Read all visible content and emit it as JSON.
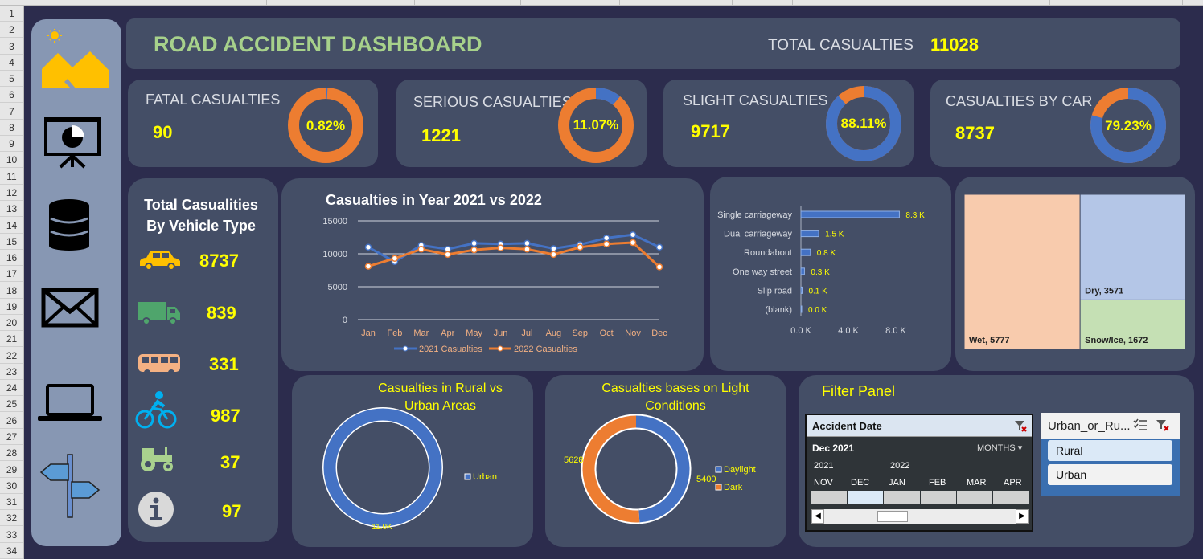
{
  "dashboard": {
    "title": "ROAD ACCIDENT DASHBOARD",
    "total_label": "TOTAL CASUALTIES",
    "total_value": "11028"
  },
  "row_numbers": [
    "1",
    "2",
    "3",
    "4",
    "5",
    "6",
    "7",
    "8",
    "9",
    "10",
    "11",
    "12",
    "13",
    "14",
    "15",
    "16",
    "17",
    "18",
    "19",
    "20",
    "21",
    "22",
    "23",
    "24",
    "25",
    "26",
    "27",
    "28",
    "29",
    "30",
    "31",
    "32",
    "33",
    "34"
  ],
  "sidebar": {
    "icons": [
      "dashboard-logo-icon",
      "presentation-chart-icon",
      "database-icon",
      "mail-icon",
      "laptop-icon",
      "signpost-icon"
    ]
  },
  "kpis": [
    {
      "label": "FATAL CASUALTIES",
      "value": "90",
      "pct": "0.82%",
      "fraction": 0.0082
    },
    {
      "label": "SERIOUS CASUALTIES",
      "value": "1221",
      "pct": "11.07%",
      "fraction": 0.1107
    },
    {
      "label": "SLIGHT CASUALTIES",
      "value": "9717",
      "pct": "88.11%",
      "fraction": 0.8811
    },
    {
      "label": "CASUALTIES BY CAR",
      "value": "8737",
      "pct": "79.23%",
      "fraction": 0.7923
    }
  ],
  "vehicle_type": {
    "title_line1": "Total Casualities",
    "title_line2": "By Vehicle Type",
    "items": [
      {
        "icon": "car-icon",
        "value": "8737"
      },
      {
        "icon": "truck-icon",
        "value": "839"
      },
      {
        "icon": "bus-icon",
        "value": "331"
      },
      {
        "icon": "bicycle-icon",
        "value": "987"
      },
      {
        "icon": "tractor-icon",
        "value": "37"
      },
      {
        "icon": "info-icon",
        "value": "97"
      }
    ]
  },
  "colors": {
    "blue": "#4472c4",
    "orange": "#ed7d31",
    "yellow": "#ffff00",
    "panel": "#444e66",
    "background": "#2c2c4d",
    "title_green": "#a7d18b"
  },
  "chart_data": [
    {
      "type": "line",
      "title": "Casualties in Year 2021 vs 2022",
      "categories": [
        "Jan",
        "Feb",
        "Mar",
        "Apr",
        "May",
        "Jun",
        "Jul",
        "Aug",
        "Sep",
        "Oct",
        "Nov",
        "Dec"
      ],
      "y_ticks": [
        "0",
        "5000",
        "10000",
        "15000"
      ],
      "ylim": [
        0,
        15000
      ],
      "series": [
        {
          "name": "2021 Casualties",
          "values": [
            11000,
            8800,
            11300,
            10700,
            11600,
            11500,
            11600,
            10800,
            11400,
            12400,
            12900,
            11000
          ]
        },
        {
          "name": "2022 Casualties",
          "values": [
            8100,
            9300,
            10700,
            9900,
            10600,
            10900,
            10700,
            9900,
            11000,
            11500,
            11700,
            8000
          ]
        }
      ],
      "legend": "bottom",
      "grid": true
    },
    {
      "type": "bar",
      "orientation": "horizontal",
      "categories": [
        "Single carriageway",
        "Dual carriageway",
        "Roundabout",
        "One way street",
        "Slip road",
        "(blank)"
      ],
      "values": [
        8.3,
        1.5,
        0.8,
        0.3,
        0.1,
        0.0
      ],
      "data_labels": [
        "8.3 K",
        "1.5 K",
        "0.8 K",
        "0.3 K",
        "0.1 K",
        "0.0 K"
      ],
      "x_ticks": [
        "0.0 K",
        "4.0 K",
        "8.0 K"
      ],
      "xlim": [
        0,
        8.0
      ]
    },
    {
      "type": "treemap",
      "categories": [
        "Wet",
        "Dry",
        "Snow/Ice"
      ],
      "values": [
        5777,
        3571,
        1672
      ],
      "labels": [
        "Wet, 5777",
        "Dry, 3571",
        "Snow/Ice, 1672"
      ]
    },
    {
      "type": "pie",
      "variant": "doughnut",
      "title": "Casualties in Rural vs Urban Areas",
      "categories": [
        "Urban"
      ],
      "values": [
        11.0
      ],
      "data_labels": [
        "11.0K"
      ],
      "legend": [
        "Urban"
      ]
    },
    {
      "type": "pie",
      "variant": "doughnut",
      "title": "Casualties bases on Light Conditions",
      "categories": [
        "Daylight",
        "Dark"
      ],
      "values": [
        5400,
        5628
      ],
      "data_labels": [
        "5400",
        "5628"
      ],
      "legend": [
        "Daylight",
        "Dark"
      ]
    }
  ],
  "filter_panel": {
    "title": "Filter Panel",
    "timeline": {
      "header": "Accident Date",
      "selected": "Dec 2021",
      "level": "MONTHS",
      "years": [
        "2021",
        "2022"
      ],
      "months": [
        "NOV",
        "DEC",
        "JAN",
        "FEB",
        "MAR",
        "APR"
      ]
    },
    "slicer": {
      "header": "Urban_or_Ru...",
      "items": [
        "Rural",
        "Urban"
      ]
    }
  }
}
